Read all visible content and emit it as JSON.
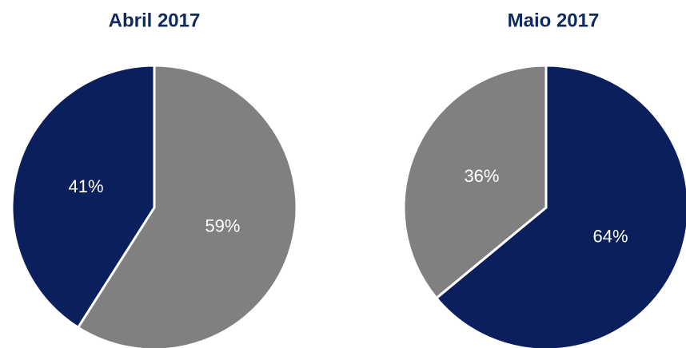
{
  "chart_data": [
    {
      "type": "pie",
      "title": "Abril 2017",
      "categories": [
        null,
        null
      ],
      "values": [
        59,
        41
      ],
      "value_labels": [
        "59%",
        "41%"
      ],
      "colors": [
        "#808080",
        "#0a1f5c"
      ]
    },
    {
      "type": "pie",
      "title": "Maio 2017",
      "categories": [
        null,
        null
      ],
      "values": [
        64,
        36
      ],
      "value_labels": [
        "64%",
        "36%"
      ],
      "colors": [
        "#0a1f5c",
        "#808080"
      ]
    }
  ]
}
